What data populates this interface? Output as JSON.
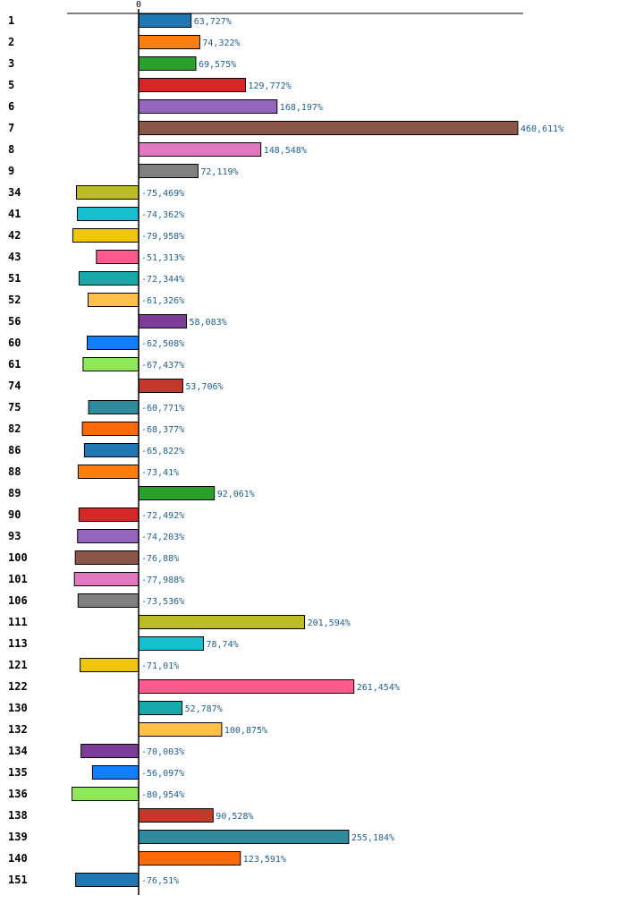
{
  "chart_data": {
    "type": "bar",
    "orientation": "horizontal",
    "title": "",
    "xlabel": "",
    "ylabel": "",
    "zero_label": "0",
    "xlim": [
      -125,
      480
    ],
    "categories": [
      "1",
      "2",
      "3",
      "5",
      "6",
      "7",
      "8",
      "9",
      "34",
      "41",
      "42",
      "43",
      "51",
      "52",
      "56",
      "60",
      "61",
      "74",
      "75",
      "82",
      "86",
      "88",
      "89",
      "90",
      "93",
      "100",
      "101",
      "106",
      "111",
      "113",
      "121",
      "122",
      "130",
      "132",
      "134",
      "135",
      "136",
      "138",
      "139",
      "140",
      "151"
    ],
    "values": [
      63.727,
      74.322,
      69.575,
      129.772,
      168.197,
      460.611,
      148.548,
      72.119,
      -75.469,
      -74.362,
      -79.958,
      -51.313,
      -72.344,
      -61.326,
      58.083,
      -62.508,
      -67.437,
      53.706,
      -60.771,
      -68.377,
      -65.822,
      -73.41,
      92.061,
      -72.492,
      -74.203,
      -76.88,
      -77.988,
      -73.536,
      201.594,
      78.74,
      -71.01,
      261.454,
      52.787,
      100.875,
      -70.003,
      -56.097,
      -80.954,
      90.528,
      255.184,
      123.591,
      -76.51
    ],
    "value_labels": [
      "63,727%",
      "74,322%",
      "69,575%",
      "129,772%",
      "168,197%",
      "460,611%",
      "148,548%",
      "72,119%",
      "-75,469%",
      "-74,362%",
      "-79,958%",
      "-51,313%",
      "-72,344%",
      "-61,326%",
      "58,083%",
      "-62,508%",
      "-67,437%",
      "53,706%",
      "-60,771%",
      "-68,377%",
      "-65,822%",
      "-73,41%",
      "92,061%",
      "-72,492%",
      "-74,203%",
      "-76,88%",
      "-77,988%",
      "-73,536%",
      "201,594%",
      "78,74%",
      "-71,01%",
      "261,454%",
      "52,787%",
      "100,875%",
      "-70,003%",
      "-56,097%",
      "-80,954%",
      "90,528%",
      "255,184%",
      "123,591%",
      "-76,51%"
    ],
    "colors": [
      "#1f77b4",
      "#ff7f0e",
      "#2ca02c",
      "#d62728",
      "#9467bd",
      "#8c564b",
      "#e377c2",
      "#7f7f7f",
      "#bcbd22",
      "#17becf",
      "#f1c40f",
      "#ff5c8d",
      "#17aaaa",
      "#ffc04c",
      "#7d3c98",
      "#0f7fff",
      "#8fe85a",
      "#c0392b",
      "#2e8b9e",
      "#ff6a06",
      "#1f77b4",
      "#ff7f0e",
      "#2ca02c",
      "#d62728",
      "#9467bd",
      "#8c564b",
      "#e377c2",
      "#7f7f7f",
      "#bcbd22",
      "#17becf",
      "#f1c40f",
      "#ff5c8d",
      "#17aaaa",
      "#ffc04c",
      "#7d3c98",
      "#0f7fff",
      "#8fe85a",
      "#c0392b",
      "#2e8b9e",
      "#ff6a06",
      "#1f77b4"
    ],
    "grid": false,
    "legend": "none"
  }
}
